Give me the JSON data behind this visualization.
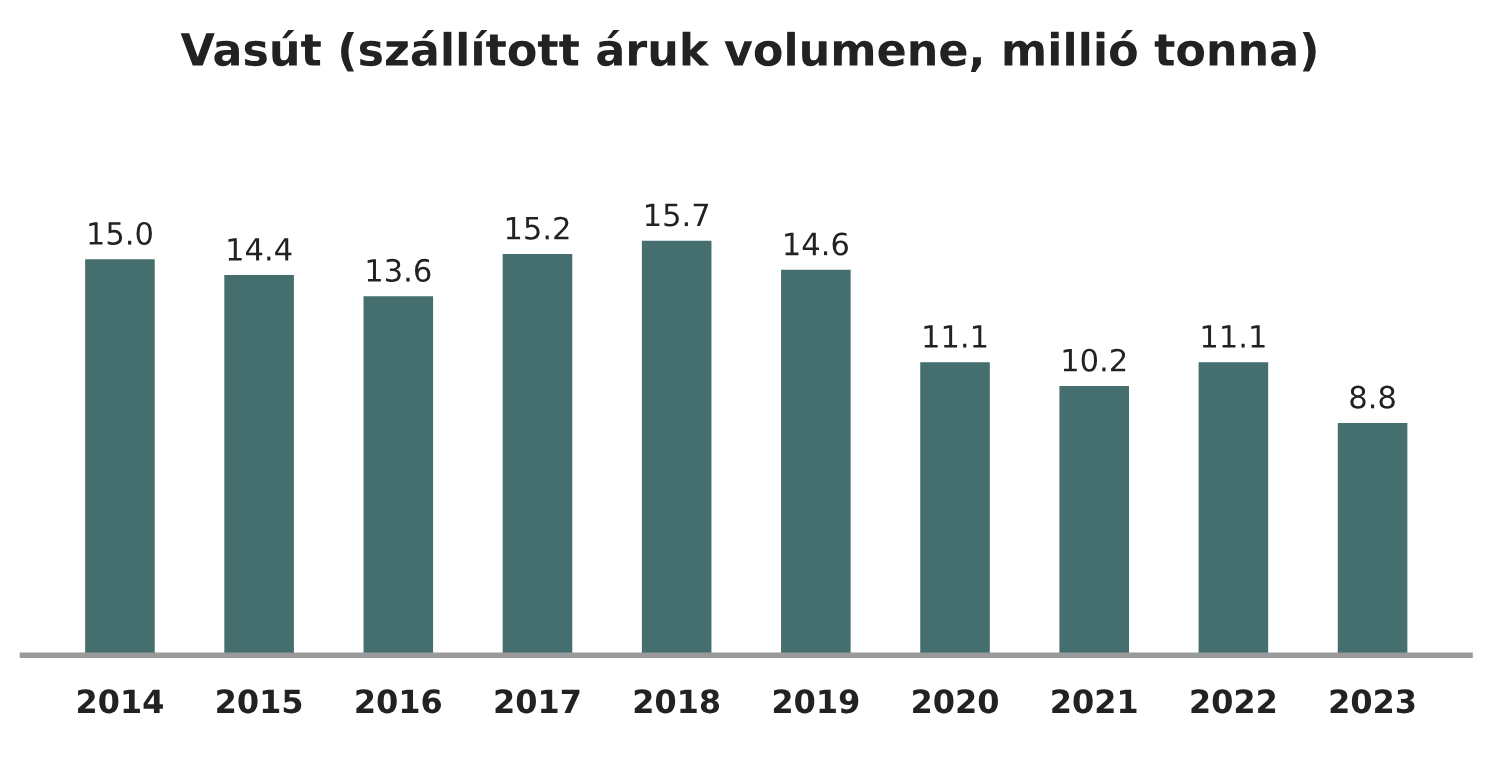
{
  "chart_data": {
    "type": "bar",
    "title": "Vasút (szállított áruk volumene, millió tonna)",
    "categories": [
      "2014",
      "2015",
      "2016",
      "2017",
      "2018",
      "2019",
      "2020",
      "2021",
      "2022",
      "2023"
    ],
    "values": [
      15.0,
      14.4,
      13.6,
      15.2,
      15.7,
      14.6,
      11.1,
      10.2,
      11.1,
      8.8
    ],
    "value_labels": [
      "15.0",
      "14.4",
      "13.6",
      "15.2",
      "15.7",
      "14.6",
      "11.1",
      "10.2",
      "11.1",
      "8.8"
    ],
    "color": "#456f6e",
    "grid": false,
    "legend": false
  }
}
